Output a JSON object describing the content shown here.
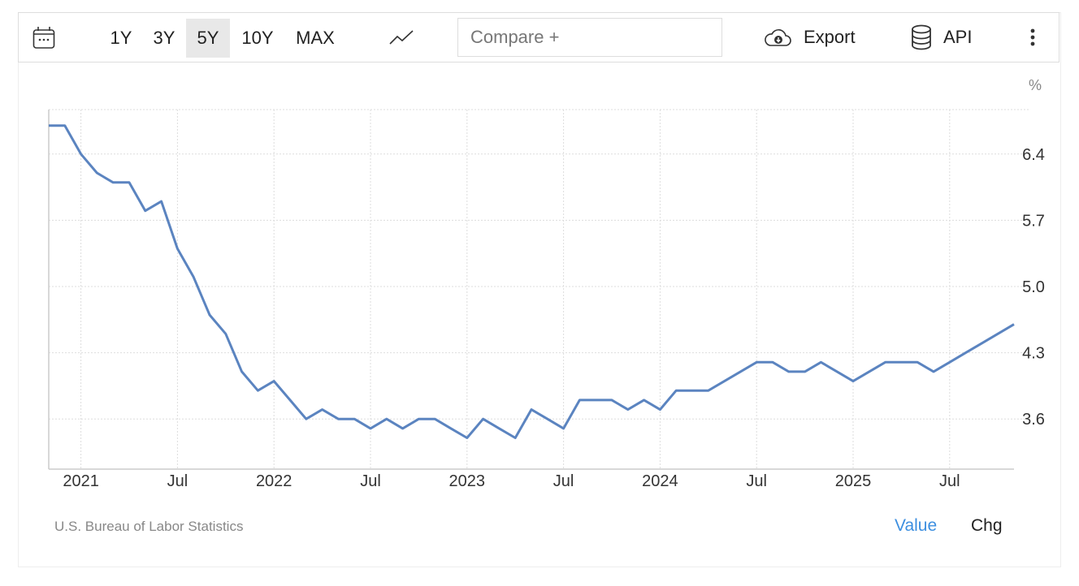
{
  "toolbar": {
    "calendar_icon": "calendar-icon",
    "ranges": [
      "1Y",
      "3Y",
      "5Y",
      "10Y",
      "MAX"
    ],
    "active_range": "5Y",
    "chart_type_icon": "line-chart-icon",
    "compare_placeholder": "Compare +",
    "export_label": "Export",
    "api_label": "API",
    "more_icon": "vertical-ellipsis-icon"
  },
  "chart_data": {
    "type": "line",
    "unit": "%",
    "x": [
      "2020-11",
      "2020-12",
      "2021-01",
      "2021-02",
      "2021-03",
      "2021-04",
      "2021-05",
      "2021-06",
      "2021-07",
      "2021-08",
      "2021-09",
      "2021-10",
      "2021-11",
      "2021-12",
      "2022-01",
      "2022-02",
      "2022-03",
      "2022-04",
      "2022-05",
      "2022-06",
      "2022-07",
      "2022-08",
      "2022-09",
      "2022-10",
      "2022-11",
      "2022-12",
      "2023-01",
      "2023-02",
      "2023-03",
      "2023-04",
      "2023-05",
      "2023-06",
      "2023-07",
      "2023-08",
      "2023-09",
      "2023-10",
      "2023-11",
      "2023-12",
      "2024-01",
      "2024-02",
      "2024-03",
      "2024-04",
      "2024-05",
      "2024-06",
      "2024-07",
      "2024-08",
      "2024-09",
      "2024-10",
      "2024-11",
      "2024-12",
      "2025-01",
      "2025-02",
      "2025-03",
      "2025-04",
      "2025-05",
      "2025-06",
      "2025-07",
      "2025-08",
      "2025-09",
      "2025-11"
    ],
    "values": [
      6.7,
      6.7,
      6.4,
      6.2,
      6.1,
      6.1,
      5.8,
      5.9,
      5.4,
      5.1,
      4.7,
      4.5,
      4.1,
      3.9,
      4.0,
      3.8,
      3.6,
      3.7,
      3.6,
      3.6,
      3.5,
      3.6,
      3.5,
      3.6,
      3.6,
      3.5,
      3.4,
      3.6,
      3.5,
      3.4,
      3.7,
      3.6,
      3.5,
      3.8,
      3.8,
      3.8,
      3.7,
      3.8,
      3.7,
      3.9,
      3.9,
      3.9,
      4.0,
      4.1,
      4.2,
      4.2,
      4.1,
      4.1,
      4.2,
      4.1,
      4.0,
      4.1,
      4.2,
      4.2,
      4.2,
      4.1,
      4.2,
      4.3,
      4.4,
      4.6
    ],
    "y_ticks": [
      "6.4",
      "5.7",
      "5.0",
      "4.3",
      "3.6"
    ],
    "x_ticks": [
      {
        "label": "2021",
        "date": "2021-01"
      },
      {
        "label": "Jul",
        "date": "2021-07"
      },
      {
        "label": "2022",
        "date": "2022-01"
      },
      {
        "label": "Jul",
        "date": "2022-07"
      },
      {
        "label": "2023",
        "date": "2023-01"
      },
      {
        "label": "Jul",
        "date": "2023-07"
      },
      {
        "label": "2024",
        "date": "2024-01"
      },
      {
        "label": "Jul",
        "date": "2024-07"
      },
      {
        "label": "2025",
        "date": "2025-01"
      },
      {
        "label": "Jul",
        "date": "2025-07"
      }
    ],
    "ylim": [
      3.07,
      6.87
    ],
    "xlim": [
      "2020-11",
      "2025-11"
    ],
    "y_axis_side": "right",
    "grid": true,
    "line_color": "#5b84c0"
  },
  "footer": {
    "source": "U.S. Bureau of Labor Statistics",
    "value_tab": "Value",
    "chg_tab": "Chg",
    "active_color": "#3d8fe0"
  }
}
